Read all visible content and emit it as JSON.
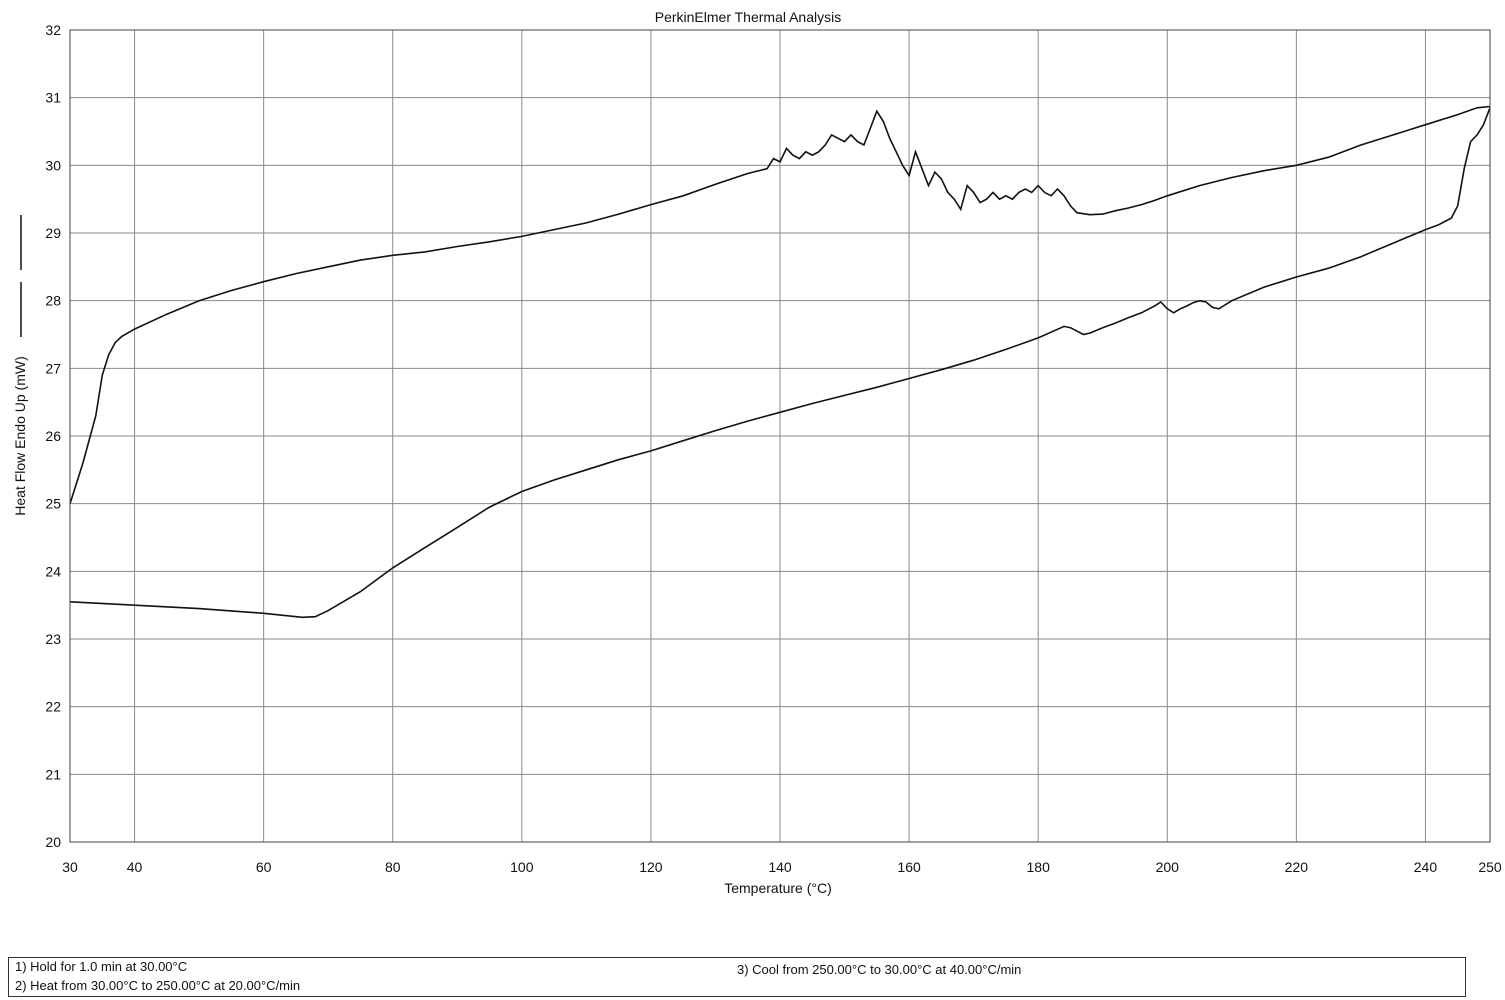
{
  "chart_data": {
    "type": "line",
    "title": "PerkinElmer Thermal Analysis",
    "xlabel": "Temperature (°C)",
    "ylabel": "Heat Flow Endo Up (mW)",
    "xlim": [
      30,
      250
    ],
    "ylim": [
      20,
      32
    ],
    "x_ticks": [
      30,
      40,
      60,
      80,
      100,
      120,
      140,
      160,
      180,
      200,
      220,
      240,
      250
    ],
    "y_ticks": [
      20,
      21,
      22,
      23,
      24,
      25,
      26,
      27,
      28,
      29,
      30,
      31,
      32
    ],
    "grid": true,
    "series": [
      {
        "x": [
          30,
          32,
          34,
          35,
          36,
          37,
          38,
          40,
          45,
          50,
          55,
          60,
          65,
          70,
          75,
          80,
          85,
          90,
          95,
          100,
          105,
          110,
          115,
          120,
          125,
          130,
          135,
          138,
          139,
          140,
          141,
          142,
          143,
          144,
          145,
          146,
          147,
          148,
          149,
          150,
          151,
          152,
          153,
          154,
          155,
          156,
          157,
          158,
          159,
          160,
          161,
          162,
          163,
          164,
          165,
          166,
          167,
          168,
          169,
          170,
          171,
          172,
          173,
          174,
          175,
          176,
          177,
          178,
          179,
          180,
          181,
          182,
          183,
          184,
          185,
          186,
          188,
          190,
          192,
          194,
          196,
          198,
          200,
          205,
          210,
          215,
          220,
          225,
          230,
          235,
          240,
          245,
          248,
          250
        ],
        "y": [
          25.0,
          25.6,
          26.3,
          26.9,
          27.2,
          27.38,
          27.47,
          27.58,
          27.8,
          28.0,
          28.15,
          28.28,
          28.4,
          28.5,
          28.6,
          28.67,
          28.72,
          28.8,
          28.87,
          28.95,
          29.05,
          29.15,
          29.28,
          29.42,
          29.55,
          29.72,
          29.88,
          29.95,
          30.1,
          30.05,
          30.25,
          30.15,
          30.1,
          30.2,
          30.15,
          30.2,
          30.3,
          30.45,
          30.4,
          30.35,
          30.45,
          30.35,
          30.3,
          30.55,
          30.8,
          30.65,
          30.4,
          30.2,
          30.0,
          29.85,
          30.2,
          29.95,
          29.7,
          29.9,
          29.8,
          29.6,
          29.5,
          29.35,
          29.7,
          29.6,
          29.45,
          29.5,
          29.6,
          29.5,
          29.55,
          29.5,
          29.6,
          29.65,
          29.6,
          29.7,
          29.6,
          29.55,
          29.65,
          29.55,
          29.4,
          29.3,
          29.27,
          29.28,
          29.33,
          29.37,
          29.42,
          29.48,
          29.55,
          29.7,
          29.82,
          29.92,
          30.0,
          30.12,
          30.3,
          30.45,
          30.6,
          30.75,
          30.85,
          30.87
        ]
      },
      {
        "x": [
          250,
          249,
          248,
          247,
          246,
          245,
          244,
          243,
          242,
          240,
          235,
          230,
          225,
          220,
          215,
          210,
          208,
          207,
          206,
          205,
          204,
          203,
          202,
          201,
          200,
          199,
          198,
          196,
          194,
          192,
          190,
          188,
          187,
          186,
          185,
          184,
          180,
          175,
          170,
          165,
          160,
          155,
          150,
          145,
          140,
          135,
          130,
          125,
          120,
          115,
          110,
          105,
          100,
          95,
          90,
          85,
          80,
          75,
          70,
          68,
          66,
          60,
          50,
          40,
          30
        ],
        "y": [
          30.85,
          30.6,
          30.45,
          30.35,
          29.95,
          29.4,
          29.22,
          29.17,
          29.12,
          29.05,
          28.85,
          28.65,
          28.48,
          28.35,
          28.2,
          28.0,
          27.88,
          27.9,
          27.98,
          28.0,
          27.97,
          27.92,
          27.88,
          27.82,
          27.88,
          27.98,
          27.92,
          27.82,
          27.75,
          27.67,
          27.6,
          27.52,
          27.5,
          27.55,
          27.6,
          27.62,
          27.45,
          27.28,
          27.12,
          26.98,
          26.85,
          26.72,
          26.6,
          26.48,
          26.35,
          26.22,
          26.08,
          25.93,
          25.78,
          25.65,
          25.5,
          25.35,
          25.18,
          24.95,
          24.65,
          24.35,
          24.05,
          23.7,
          23.42,
          23.33,
          23.32,
          23.38,
          23.45,
          23.5,
          23.55
        ]
      }
    ]
  },
  "method": {
    "step1": "1)  Hold for 1.0 min at 30.00°C",
    "step2": "2)  Heat from 30.00°C to 250.00°C at 20.00°C/min",
    "step3": "3)    Cool from 250.00°C to 30.00°C at 40.00°C/min"
  }
}
